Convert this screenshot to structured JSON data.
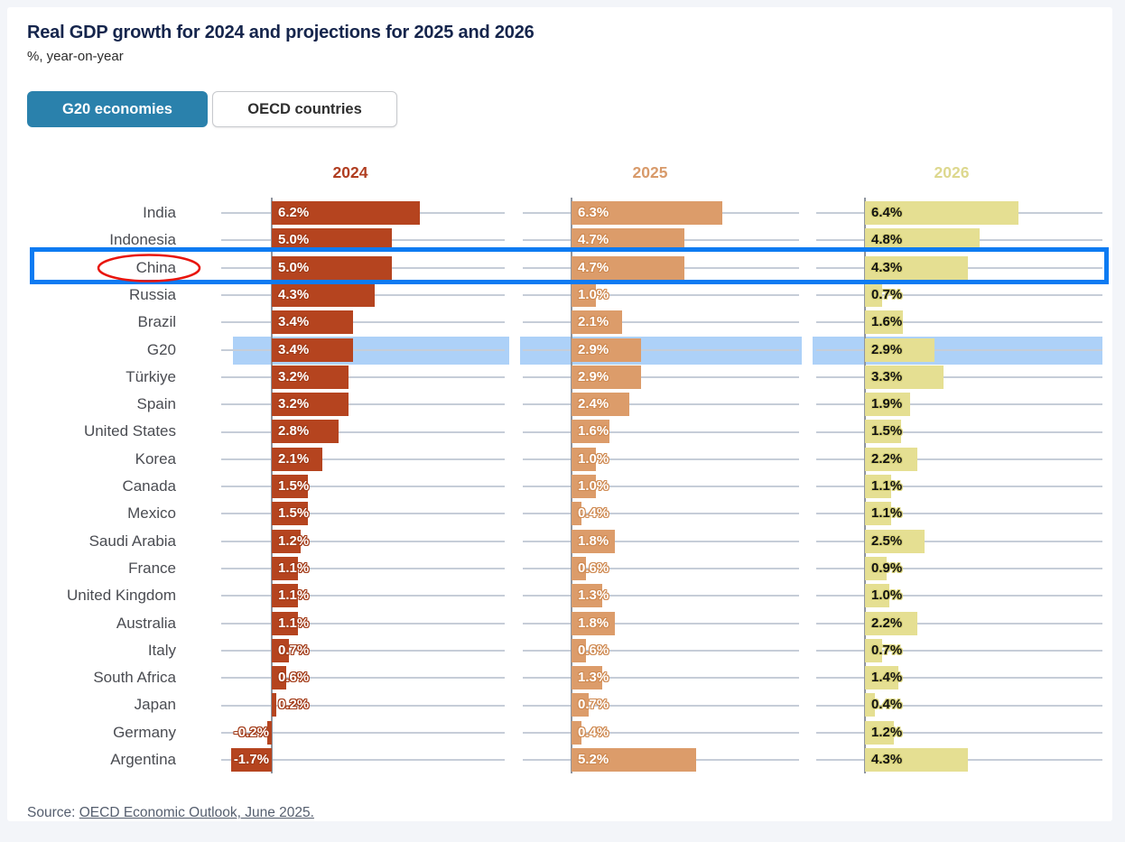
{
  "header": {
    "title": "Real GDP growth for 2024 and projections for 2025 and 2026",
    "subtitle": "%, year-on-year"
  },
  "tabs": [
    {
      "label": "G20 economies",
      "active": true
    },
    {
      "label": "OECD countries",
      "active": false
    }
  ],
  "source": {
    "prefix": "Source: ",
    "link": "OECD Economic Outlook, June 2025."
  },
  "colors": {
    "title": "#15254c",
    "active_tab": "#2a81ac",
    "bar_2024": "#b5441f",
    "bar_2024_stroke": "#a23a17",
    "bar_2025": "#dc9c6a",
    "bar_2025_stroke": "#cf8a52",
    "bar_2026": "#e5df92",
    "bar_2026_stroke": "#d8d279",
    "header_2024": "#b03d20",
    "header_2025": "#d89a6a",
    "header_2026": "#ddd88e",
    "highlight_band": "#97c8f7",
    "highlight_box": "#0d7bf2",
    "ellipse": "#e8150d"
  },
  "chart_data": {
    "type": "bar",
    "orientation": "horizontal",
    "title": "Real GDP growth for 2024 and projections for 2025 and 2026",
    "subtitle": "%, year-on-year",
    "value_suffix": "%",
    "xlim": [
      -2,
      9.8
    ],
    "grid": true,
    "legend_position": "column-headers-top",
    "categories": [
      "India",
      "Indonesia",
      "China",
      "Russia",
      "Brazil",
      "G20",
      "Türkiye",
      "Spain",
      "United States",
      "Korea",
      "Canada",
      "Mexico",
      "Saudi Arabia",
      "France",
      "United Kingdom",
      "Australia",
      "Italy",
      "South Africa",
      "Japan",
      "Germany",
      "Argentina"
    ],
    "series": [
      {
        "name": "2024",
        "color": "#b5441f",
        "values": [
          6.2,
          5.0,
          5.0,
          4.3,
          3.4,
          3.4,
          3.2,
          3.2,
          2.8,
          2.1,
          1.5,
          1.5,
          1.2,
          1.1,
          1.1,
          1.1,
          0.7,
          0.6,
          0.2,
          -0.2,
          -1.7
        ]
      },
      {
        "name": "2025",
        "color": "#dc9c6a",
        "values": [
          6.3,
          4.7,
          4.7,
          1.0,
          2.1,
          2.9,
          2.9,
          2.4,
          1.6,
          1.0,
          1.0,
          0.4,
          1.8,
          0.6,
          1.3,
          1.8,
          0.6,
          1.3,
          0.7,
          0.4,
          5.2
        ]
      },
      {
        "name": "2026",
        "color": "#e5df92",
        "values": [
          6.4,
          4.8,
          4.3,
          0.7,
          1.6,
          2.9,
          3.3,
          1.9,
          1.5,
          2.2,
          1.1,
          1.1,
          2.5,
          0.9,
          1.0,
          2.2,
          0.7,
          1.4,
          0.4,
          1.2,
          4.3
        ]
      }
    ],
    "annotations": {
      "highlight_band_row": "G20",
      "highlight_band_color": "#97c8f7",
      "highlight_box_row": "China",
      "highlight_box_color": "#0d7bf2",
      "circled_label": "China",
      "circle_color": "#e8150d"
    }
  }
}
